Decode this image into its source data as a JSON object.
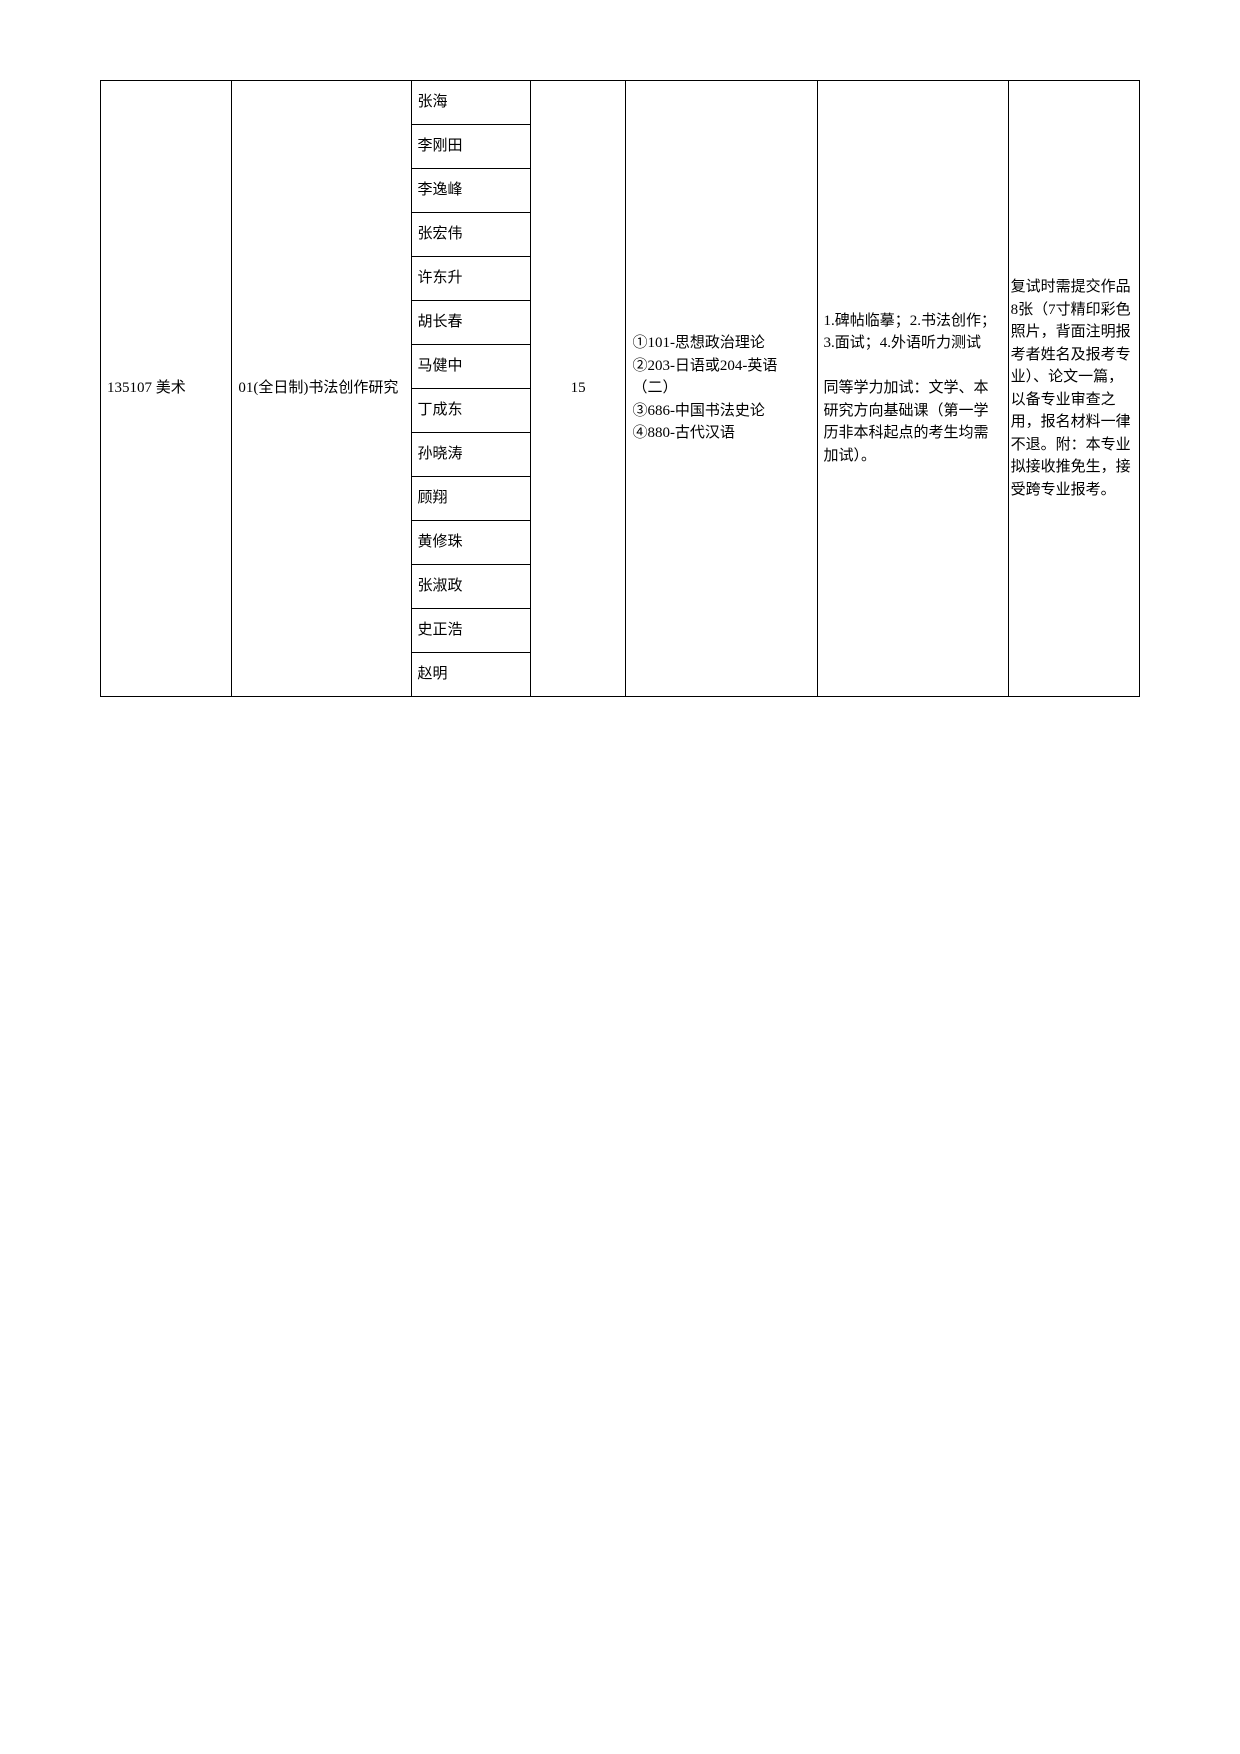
{
  "table": {
    "code": "135107 美术",
    "direction": "01(全日制)书法创作研究",
    "teachers": [
      "张海",
      "李刚田",
      "李逸峰",
      "张宏伟",
      "许东升",
      "胡长春",
      "马健中",
      "丁成东",
      "孙晓涛",
      "顾翔",
      "黄修珠",
      "张淑政",
      "史正浩",
      "赵明"
    ],
    "quota": "15",
    "subjects": "①101-思想政治理论\n②203-日语或204-英语（二）\n③686-中国书法史论\n④880-古代汉语",
    "retest": "1.碑帖临摹；2.书法创作；3.面试；4.外语听力测试\n\n同等学力加试：文学、本研究方向基础课（第一学历非本科起点的考生均需加试）。",
    "notes": "复试时需提交作品8张（7寸精印彩色照片，背面注明报考者姓名及报考专业）、论文一篇，以备专业审查之用，报名材料一律不退。附：本专业拟接收推免生，接受跨专业报考。"
  },
  "style": {
    "border_color": "#000000",
    "background_color": "#ffffff",
    "font_size": 15,
    "teacher_row_height": 44
  }
}
